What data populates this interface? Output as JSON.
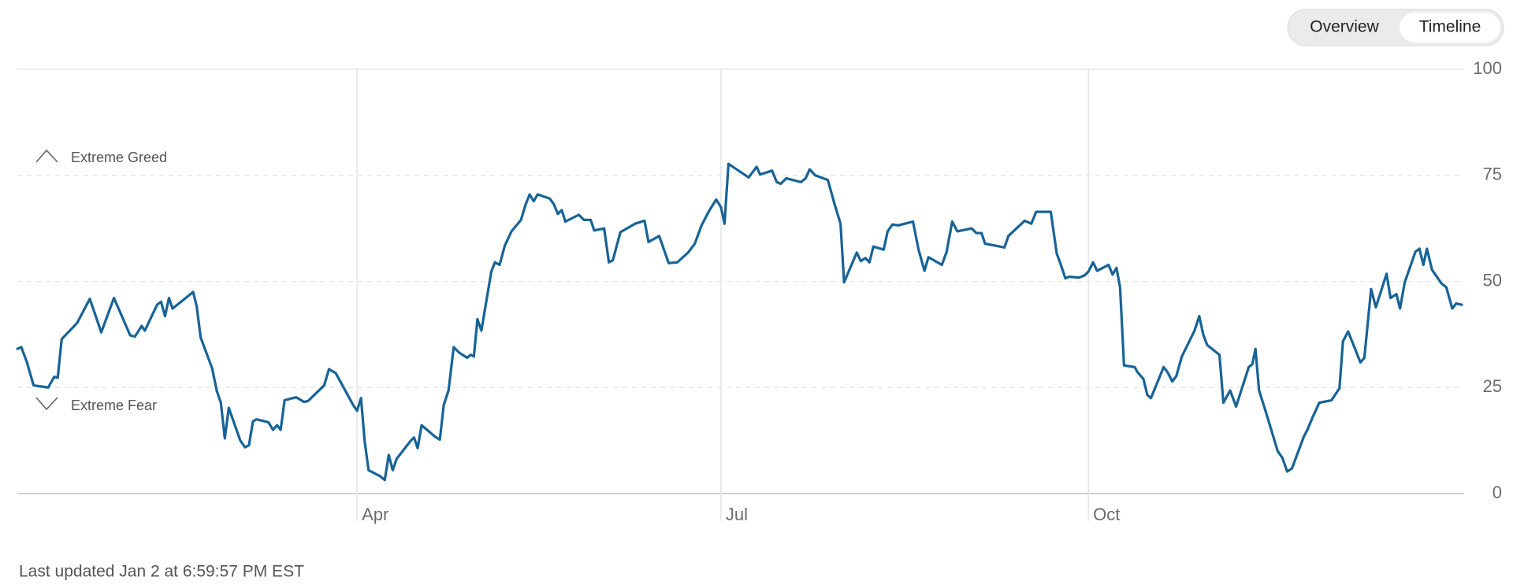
{
  "tabs": [
    "Overview",
    "Timeline"
  ],
  "active_tab": 1,
  "footer": "Last updated Jan 2 at 6:59:57 PM EST",
  "chart_data": {
    "type": "line",
    "annotations": [
      "Extreme Greed",
      "Extreme Fear"
    ],
    "color": "#176397",
    "xlim": [
      0,
      365
    ],
    "xticks": [
      {
        "value": 85.8,
        "label": "Apr"
      },
      {
        "value": 177.7,
        "label": "Jul"
      },
      {
        "value": 270.5,
        "label": "Oct"
      }
    ],
    "ylim": [
      0,
      100
    ],
    "yticks": [
      0,
      25,
      50,
      75,
      100
    ],
    "grid": true,
    "x": [
      0,
      1.0,
      2.4,
      4.1,
      7.8,
      9.3,
      10.2,
      11.2,
      15.1,
      18.3,
      21.2,
      24.4,
      28.5,
      29.7,
      31.4,
      32.2,
      35.3,
      36.3,
      37.3,
      38.3,
      39.2,
      44.4,
      45.3,
      46.3,
      49.2,
      50.4,
      51.4,
      52.4,
      53.4,
      56.3,
      57.5,
      58.5,
      59.5,
      60.4,
      63.4,
      64.6,
      65.6,
      66.5,
      67.5,
      70.4,
      72.4,
      73.4,
      77.5,
      78.7,
      80.4,
      84.8,
      85.8,
      86.8,
      87.7,
      88.7,
      91.6,
      92.8,
      93.8,
      94.8,
      95.8,
      99.4,
      100.2,
      101.1,
      102.1,
      105.5,
      106.7,
      107.7,
      108.9,
      110.2,
      111.6,
      113.6,
      114.5,
      115.3,
      116.2,
      117.2,
      119.7,
      120.6,
      121.8,
      123.1,
      124.8,
      127.2,
      128.4,
      129.4,
      130.4,
      131.4,
      134.5,
      135.5,
      136.5,
      137.5,
      138.4,
      141.8,
      143.1,
      144.8,
      145.7,
      148.2,
      149.4,
      150.4,
      152.3,
      156.0,
      158.4,
      159.4,
      162.1,
      164.5,
      166.7,
      169.4,
      171.1,
      172.8,
      174.7,
      176.5,
      177.7,
      178.6,
      179.6,
      184.7,
      186.7,
      187.6,
      190.6,
      191.8,
      192.8,
      194.2,
      197.9,
      199.1,
      200.1,
      201.5,
      204.7,
      206.4,
      207.9,
      208.8,
      212.0,
      213.0,
      214.2,
      215.2,
      216.2,
      218.8,
      219.8,
      221.0,
      222.5,
      226.2,
      227.6,
      229.1,
      230.1,
      233.5,
      234.7,
      236.1,
      237.4,
      241.0,
      242.2,
      243.5,
      244.4,
      249.3,
      250.3,
      254.4,
      256.1,
      257.3,
      261.0,
      262.5,
      263.4,
      264.7,
      265.6,
      268.1,
      269.5,
      270.5,
      271.7,
      272.7,
      275.6,
      276.6,
      277.6,
      278.5,
      279.5,
      282.2,
      282.9,
      284.4,
      285.4,
      286.3,
      289.5,
      290.5,
      291.7,
      292.7,
      294.1,
      297.3,
      298.5,
      299.5,
      300.5,
      303.6,
      304.6,
      306.3,
      307.8,
      311.0,
      311.9,
      312.7,
      313.6,
      315.3,
      318.3,
      319.5,
      320.7,
      321.9,
      324.9,
      325.8,
      327.0,
      328.8,
      331.9,
      333.9,
      334.8,
      336.1,
      339.2,
      340.2,
      341.9,
      343.1,
      345.8,
      346.8,
      348.3,
      349.2,
      350.4,
      353.1,
      354.1,
      355.1,
      356.0,
      357.3,
      359.7,
      360.9,
      362.4,
      363.4,
      364.8
    ],
    "values": [
      34.1,
      34.5,
      31,
      25.5,
      25,
      27.5,
      27.3,
      36.4,
      40.2,
      45.9,
      38,
      46.1,
      37.3,
      37,
      39.5,
      38.4,
      44.5,
      45.2,
      41.8,
      46.1,
      43.6,
      47.5,
      44.1,
      36.8,
      29.5,
      24.1,
      21.4,
      13,
      20.2,
      12.5,
      10.9,
      11.4,
      17,
      17.5,
      16.8,
      15,
      16.1,
      15,
      22,
      22.7,
      21.6,
      21.8,
      25.5,
      29.3,
      28.4,
      20.9,
      19.5,
      22.5,
      12.5,
      5.5,
      4.1,
      3.2,
      9.1,
      5.5,
      8.2,
      12.5,
      13.2,
      10.7,
      16.1,
      13.4,
      12.7,
      20.9,
      24.3,
      34.5,
      33.2,
      32,
      32.7,
      32.3,
      41.1,
      38.4,
      52.3,
      54.5,
      53.9,
      58.4,
      61.8,
      64.5,
      68.2,
      70.5,
      68.9,
      70.5,
      69.5,
      68.2,
      65.9,
      66.8,
      64.1,
      65.7,
      64.5,
      64.5,
      62,
      62.5,
      54.5,
      55,
      61.6,
      63.6,
      64.3,
      59.3,
      60.7,
      54.3,
      54.5,
      56.8,
      58.9,
      63.2,
      66.6,
      69.3,
      67.5,
      63.6,
      77.7,
      74.5,
      77,
      75.2,
      76.1,
      73.4,
      73,
      74.3,
      73.4,
      74.3,
      76.4,
      75,
      73.9,
      68.2,
      63.6,
      49.8,
      56.8,
      54.8,
      55.5,
      54.5,
      58.2,
      57.5,
      61.8,
      63.4,
      63.2,
      64.1,
      57.5,
      52.5,
      55.7,
      53.9,
      57,
      64.1,
      61.8,
      62.5,
      61.4,
      61.4,
      58.9,
      58,
      60.7,
      64.3,
      63.6,
      66.4,
      66.4,
      56.6,
      54.3,
      50.7,
      51.1,
      50.9,
      51.4,
      52.3,
      54.5,
      52.5,
      53.9,
      51.6,
      53.2,
      48.6,
      30.2,
      29.8,
      28.6,
      27,
      23.2,
      22.5,
      29.8,
      28.6,
      26.4,
      27.7,
      32.3,
      38.4,
      41.8,
      37.5,
      35,
      32.7,
      21.4,
      24.3,
      20.5,
      29.8,
      30.5,
      34.1,
      24.3,
      19.3,
      10,
      8.4,
      5.2,
      5.9,
      13.4,
      15,
      17.7,
      21.4,
      22,
      24.8,
      35.9,
      38.2,
      30.9,
      32,
      48.2,
      43.9,
      51.8,
      46.1,
      47,
      43.6,
      49.8,
      57,
      57.7,
      53.9,
      57.7,
      52.7,
      49.5,
      48.6,
      43.6,
      44.8,
      44.5
    ]
  }
}
